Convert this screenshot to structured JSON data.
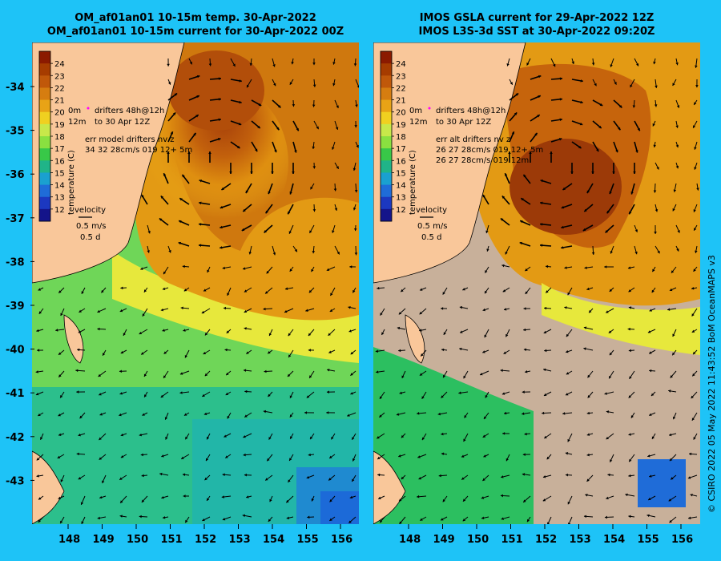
{
  "titles": {
    "left_line1": "OM_af01an01 10-15m temp. 30-Apr-2022",
    "left_line2": "OM_af01an01 10-15m current for 30-Apr-2022 00Z",
    "right_line1": "IMOS GSLA current for 29-Apr-2022 12Z",
    "right_line2": "IMOS L3S-3d SST at 30-Apr-2022 09:20Z"
  },
  "axes": {
    "lat_ticks": [
      "-34",
      "-35",
      "-36",
      "-37",
      "-38",
      "-39",
      "-40",
      "-41",
      "-42",
      "-43"
    ],
    "lon_ticks": [
      "148",
      "149",
      "150",
      "151",
      "152",
      "153",
      "154",
      "155",
      "156"
    ]
  },
  "colorbar": {
    "label": "temperature (C)",
    "ticks": [
      "24",
      "23",
      "22",
      "21",
      "20",
      "19",
      "18",
      "17",
      "16",
      "15",
      "14",
      "13",
      "12"
    ],
    "colors": [
      "#8b1a00",
      "#a63c00",
      "#c0580a",
      "#d67d10",
      "#e8a316",
      "#f0d020",
      "#c8e84a",
      "#8ae040",
      "#38c848",
      "#20b488",
      "#1aa0d0",
      "#1f6cd8",
      "#1c38c0",
      "#14148a"
    ]
  },
  "legend": {
    "left": {
      "depth1": "0m",
      "depth2": "12m",
      "drifters1": "drifters 48h@12h",
      "drifters2": "to 30 Apr 12Z",
      "err_title": "err model drifters nv z",
      "err_line1": "34 32 28cm/s 019 12+ 5m",
      "err_line2": ""
    },
    "right": {
      "depth1": "0m",
      "depth2": "12m",
      "drifters1": "drifters 48h@12h",
      "drifters2": "to 30 Apr 12Z",
      "err_title": "err alt drifters nv z",
      "err_line1": "26 27 28cm/s 019 12+ 5m",
      "err_line2": "26 27 28cm/s 019 12m"
    },
    "velocity_label": "velocity",
    "velocity_scale": "0.5 m/s",
    "velocity_days": "0.5 d"
  },
  "copyright": "© CSIRO 2022   05 May 2022 11:43:52 BoM OceanMAPS v3",
  "colors": {
    "background": "#1ec3f7",
    "land": "#f9c79a",
    "missing_sst": "#c8b09a",
    "drifter": "#ff00ff"
  }
}
